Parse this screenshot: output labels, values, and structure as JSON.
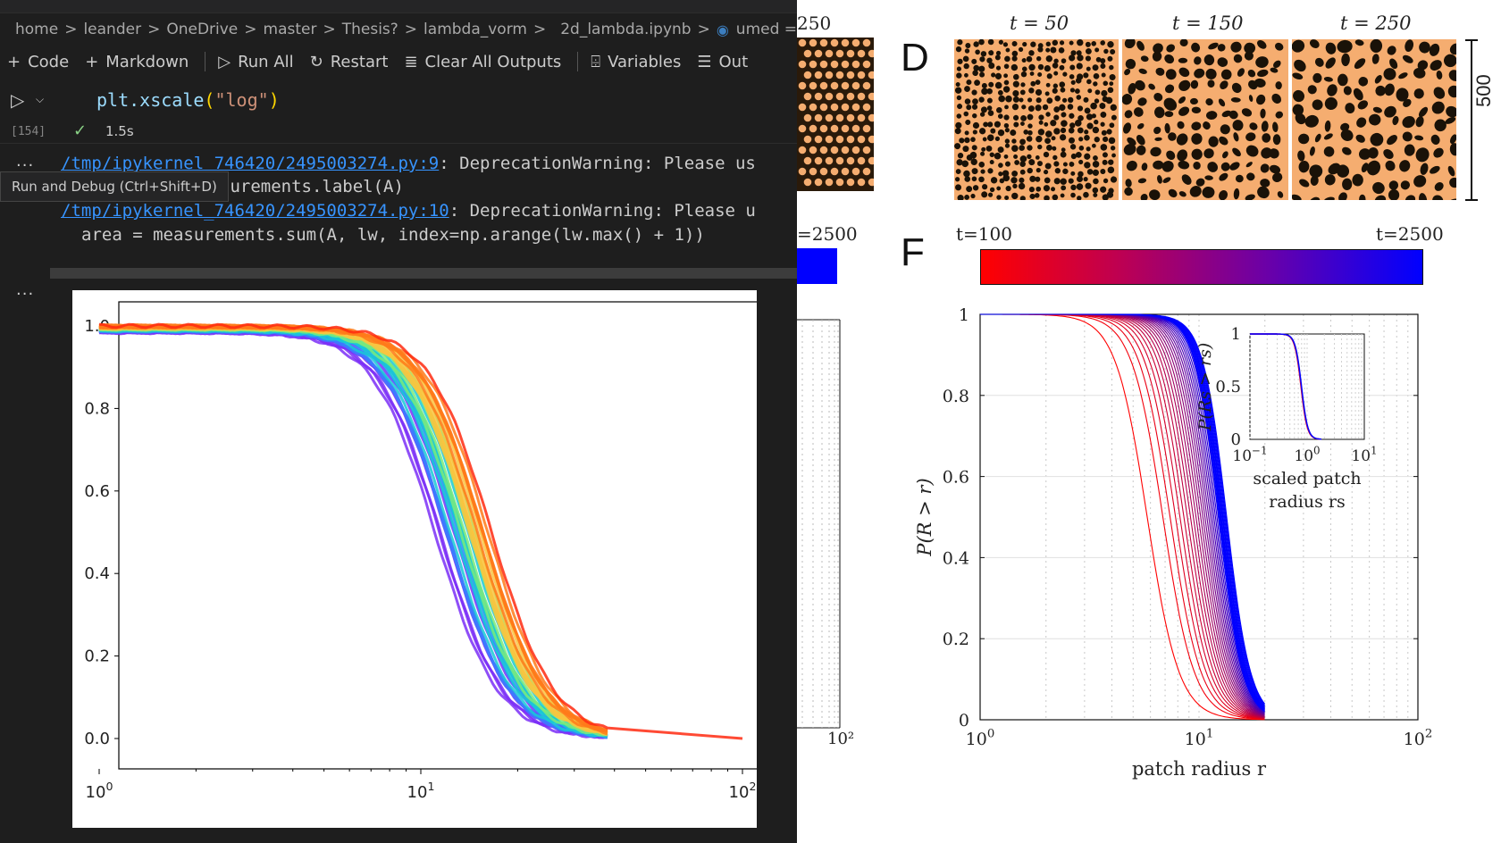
{
  "breadcrumb": {
    "items": [
      "home",
      "leander",
      "OneDrive",
      "master",
      "Thesis?",
      "lambda_vorm",
      "2d_lambda.ipynb",
      "umed = r"
    ],
    "separator": ">"
  },
  "toolbar": {
    "code": "Code",
    "markdown": "Markdown",
    "run_all": "Run All",
    "restart": "Restart",
    "clear_outputs": "Clear All Outputs",
    "variables": "Variables",
    "outline": "Out"
  },
  "cell": {
    "exec_count": "[154]",
    "exec_time": "1.5s",
    "code_fn": "plt.xscale",
    "code_open": "(",
    "code_str": "\"log\"",
    "code_close": ")"
  },
  "output": {
    "ellipsis": "...",
    "line1_link": "/tmp/ipykernel_746420/2495003274.py:9",
    "line1_text": ": DeprecationWarning: Please us",
    "line2_text": "surements.label(A)",
    "line3_link": "/tmp/ipykernel_746420/2495003274.py:10",
    "line3_text": ": DeprecationWarning: Please u",
    "line4_text": "area = measurements.sum(A, lw, index=np.arange(lw.max() + 1))",
    "tooltip": "Run and Debug (Ctrl+Shift+D)"
  },
  "notebook_plot": {
    "y_ticks": [
      "1.0",
      "0.8",
      "0.6",
      "0.4",
      "0.2",
      "0.0"
    ],
    "x_tick_base": "10",
    "x_tick_exps": [
      "0",
      "1",
      "2"
    ]
  },
  "paper": {
    "panel_d_letter": "D",
    "panel_f_letter": "F",
    "left_partial_label": "250",
    "left_partial_colorbar_label": "=2500",
    "left_partial_x_tick": "10²",
    "time_labels": [
      "t = 50",
      "t = 150",
      "t = 250"
    ],
    "scale_label": "500",
    "colorbar_left": "t=100",
    "colorbar_right": "t=2500",
    "y_label": "P(R > r)",
    "x_label": "patch radius r",
    "y_ticks": [
      "1",
      "0.8",
      "0.6",
      "0.4",
      "0.2",
      "0"
    ],
    "x_tick_base": "10",
    "x_tick_exps": [
      "0",
      "1",
      "2"
    ],
    "inset_y_label": "P(Rs > rs)",
    "inset_y_ticks": [
      "1",
      "0.5",
      "0"
    ],
    "inset_x_exps": [
      "−1",
      "0",
      "1"
    ],
    "inset_x_label_line1": "scaled patch",
    "inset_x_label_line2": "radius rs",
    "colors": {
      "red": "#ff0000",
      "blue": "#0000ff",
      "pattern_bg": "#f5ad70"
    }
  },
  "chart_data": [
    {
      "type": "line",
      "title": "",
      "xlabel": "",
      "ylabel": "",
      "xscale": "log",
      "xlim": [
        1,
        100
      ],
      "ylim": [
        0,
        1
      ],
      "grid": false,
      "series_note_colors": [
        "#7b2ff7",
        "#3b7bff",
        "#19c9d6",
        "#7bea7b",
        "#f9c440",
        "#ff7a1a",
        "#ff2a10"
      ],
      "series": [
        {
          "x": [
            1,
            2,
            4,
            6,
            8,
            10,
            12,
            14,
            16,
            20,
            25,
            30,
            35
          ],
          "y": [
            0.99,
            0.98,
            0.95,
            0.91,
            0.82,
            0.7,
            0.5,
            0.3,
            0.15,
            0.04,
            0.01,
            0.0,
            0.0
          ]
        },
        {
          "x": [
            1,
            2,
            4,
            6,
            8,
            10,
            12,
            14,
            16,
            20,
            25,
            30,
            35
          ],
          "y": [
            0.99,
            0.99,
            0.97,
            0.93,
            0.86,
            0.76,
            0.56,
            0.35,
            0.18,
            0.05,
            0.01,
            0.0,
            0.0
          ]
        },
        {
          "x": [
            1,
            2,
            4,
            6,
            8,
            10,
            12,
            14,
            16,
            20,
            25,
            30,
            35
          ],
          "y": [
            1.0,
            0.99,
            0.97,
            0.94,
            0.88,
            0.79,
            0.62,
            0.42,
            0.24,
            0.07,
            0.02,
            0.0,
            0.0
          ]
        },
        {
          "x": [
            1,
            2,
            4,
            6,
            8,
            10,
            12,
            14,
            16,
            20,
            25,
            30,
            35
          ],
          "y": [
            1.0,
            1.0,
            0.98,
            0.95,
            0.9,
            0.82,
            0.67,
            0.48,
            0.29,
            0.09,
            0.02,
            0.0,
            0.0
          ]
        },
        {
          "x": [
            1,
            2,
            4,
            6,
            8,
            10,
            12,
            14,
            16,
            20,
            25,
            30,
            35
          ],
          "y": [
            1.0,
            1.0,
            0.99,
            0.97,
            0.92,
            0.85,
            0.72,
            0.55,
            0.35,
            0.11,
            0.03,
            0.0,
            0.0
          ]
        },
        {
          "x": [
            1,
            2,
            4,
            6,
            8,
            10,
            12,
            14,
            16,
            20,
            25,
            30,
            35
          ],
          "y": [
            1.0,
            1.0,
            0.99,
            0.98,
            0.94,
            0.88,
            0.77,
            0.62,
            0.42,
            0.14,
            0.04,
            0.0,
            0.0
          ]
        },
        {
          "x": [
            1,
            2,
            4,
            6,
            8,
            10,
            12,
            14,
            16,
            20,
            25,
            30,
            35,
            100
          ],
          "y": [
            1.0,
            1.0,
            1.0,
            0.99,
            0.96,
            0.91,
            0.82,
            0.68,
            0.5,
            0.18,
            0.05,
            0.01,
            0.0,
            0.0
          ]
        }
      ]
    },
    {
      "type": "line",
      "title": "",
      "xlabel": "patch radius r",
      "ylabel": "P(R > r)",
      "xscale": "log",
      "xlim": [
        1,
        100
      ],
      "ylim": [
        0,
        1
      ],
      "grid": true,
      "color_range": [
        "#ff0000",
        "#0000ff"
      ],
      "series_family": {
        "count": 25,
        "first_half_radius": 5.8,
        "last_half_radius": 12.8
      }
    }
  ]
}
